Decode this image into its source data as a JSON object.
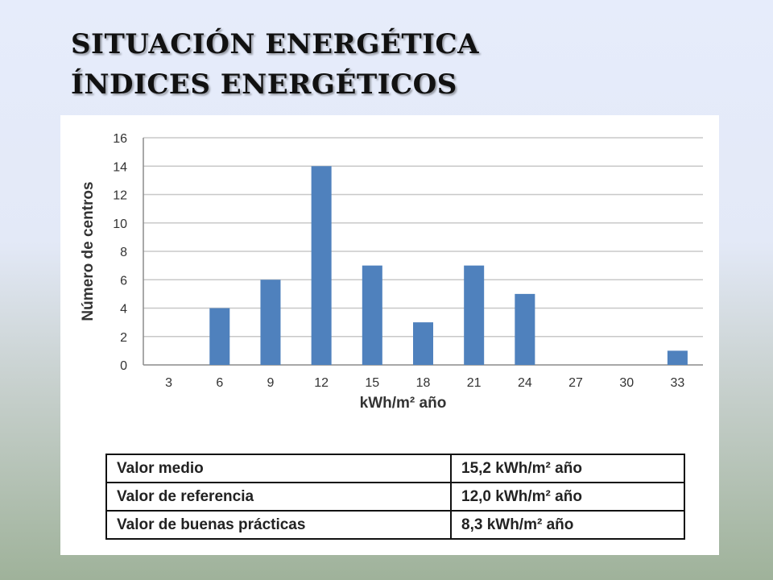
{
  "slide": {
    "title_line1": "SITUACIÓN ENERGÉTICA",
    "title_line2": "ÍNDICES ENERGÉTICOS"
  },
  "chart_data": {
    "type": "bar",
    "categories": [
      "3",
      "6",
      "9",
      "12",
      "15",
      "18",
      "21",
      "24",
      "27",
      "30",
      "33"
    ],
    "values": [
      0,
      4,
      6,
      14,
      7,
      3,
      7,
      5,
      0,
      0,
      1
    ],
    "xlabel": "kWh/m² año",
    "ylabel": "Número de centros",
    "ylim": [
      0,
      16
    ],
    "yticks": [
      "0",
      "2",
      "4",
      "6",
      "8",
      "10",
      "12",
      "14",
      "16"
    ],
    "grid": true,
    "bar_color": "#4f81bd",
    "legend": "none"
  },
  "stats_table": [
    {
      "label": "Valor medio",
      "value": "15,2 kWh/m² año"
    },
    {
      "label": "Valor de referencia",
      "value": "12,0 kWh/m² año"
    },
    {
      "label": "Valor de buenas prácticas",
      "value": "8,3 kWh/m² año"
    }
  ]
}
